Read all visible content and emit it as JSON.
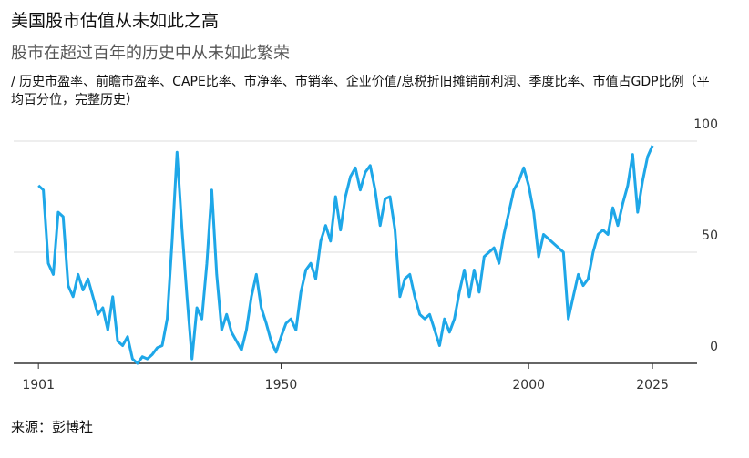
{
  "chart_data": {
    "type": "line",
    "title": "美国股市估值从未如此之高",
    "subtitle": "股市在超过百年的历史中从未如此繁荣",
    "description": "/ 历史市盈率、前瞻市盈率、CAPE比率、市净率、市销率、企业价值/息税折旧摊销前利润、季度比率、市值占GDP比例（平均百分位，完整历史）",
    "source": "来源：彭博社",
    "color": "#1ea7e8",
    "grid": true,
    "xlim": [
      1896,
      2034
    ],
    "xticks": [
      1901,
      1950,
      2000,
      2025
    ],
    "ylim": [
      0,
      100
    ],
    "yticks": [
      0,
      50,
      100
    ],
    "x": [
      1901,
      1902,
      1903,
      1904,
      1905,
      1906,
      1907,
      1908,
      1909,
      1910,
      1911,
      1912,
      1913,
      1914,
      1915,
      1916,
      1917,
      1918,
      1919,
      1920,
      1921,
      1922,
      1923,
      1924,
      1925,
      1926,
      1927,
      1928,
      1929,
      1930,
      1931,
      1932,
      1933,
      1934,
      1935,
      1936,
      1937,
      1938,
      1939,
      1940,
      1941,
      1942,
      1943,
      1944,
      1945,
      1946,
      1947,
      1948,
      1949,
      1950,
      1951,
      1952,
      1953,
      1954,
      1955,
      1956,
      1957,
      1958,
      1959,
      1960,
      1961,
      1962,
      1963,
      1964,
      1965,
      1966,
      1967,
      1968,
      1969,
      1970,
      1971,
      1972,
      1973,
      1974,
      1975,
      1976,
      1977,
      1978,
      1979,
      1980,
      1981,
      1982,
      1983,
      1984,
      1985,
      1986,
      1987,
      1988,
      1989,
      1990,
      1991,
      1992,
      1993,
      1994,
      1995,
      1996,
      1997,
      1998,
      1999,
      2000,
      2001,
      2002,
      2003,
      2004,
      2005,
      2006,
      2007,
      2008,
      2009,
      2010,
      2011,
      2012,
      2013,
      2014,
      2015,
      2016,
      2017,
      2018,
      2019,
      2020,
      2021,
      2022,
      2023,
      2024,
      2025
    ],
    "values": [
      80,
      78,
      45,
      40,
      68,
      66,
      35,
      30,
      40,
      33,
      38,
      30,
      22,
      25,
      15,
      30,
      10,
      8,
      12,
      2,
      0,
      3,
      2,
      4,
      7,
      8,
      20,
      55,
      95,
      60,
      30,
      2,
      25,
      20,
      45,
      78,
      40,
      15,
      22,
      14,
      10,
      6,
      15,
      30,
      40,
      25,
      18,
      10,
      5,
      12,
      18,
      20,
      15,
      32,
      42,
      45,
      38,
      55,
      62,
      55,
      75,
      60,
      75,
      84,
      88,
      78,
      86,
      89,
      78,
      62,
      74,
      75,
      60,
      30,
      38,
      40,
      30,
      22,
      20,
      22,
      15,
      8,
      20,
      14,
      20,
      32,
      42,
      30,
      42,
      32,
      48,
      50,
      52,
      45,
      58,
      68,
      78,
      82,
      88,
      80,
      68,
      48,
      58,
      56,
      54,
      52,
      50,
      20,
      30,
      40,
      35,
      38,
      50,
      58,
      60,
      58,
      70,
      62,
      72,
      80,
      94,
      68,
      82,
      93,
      98
    ]
  }
}
